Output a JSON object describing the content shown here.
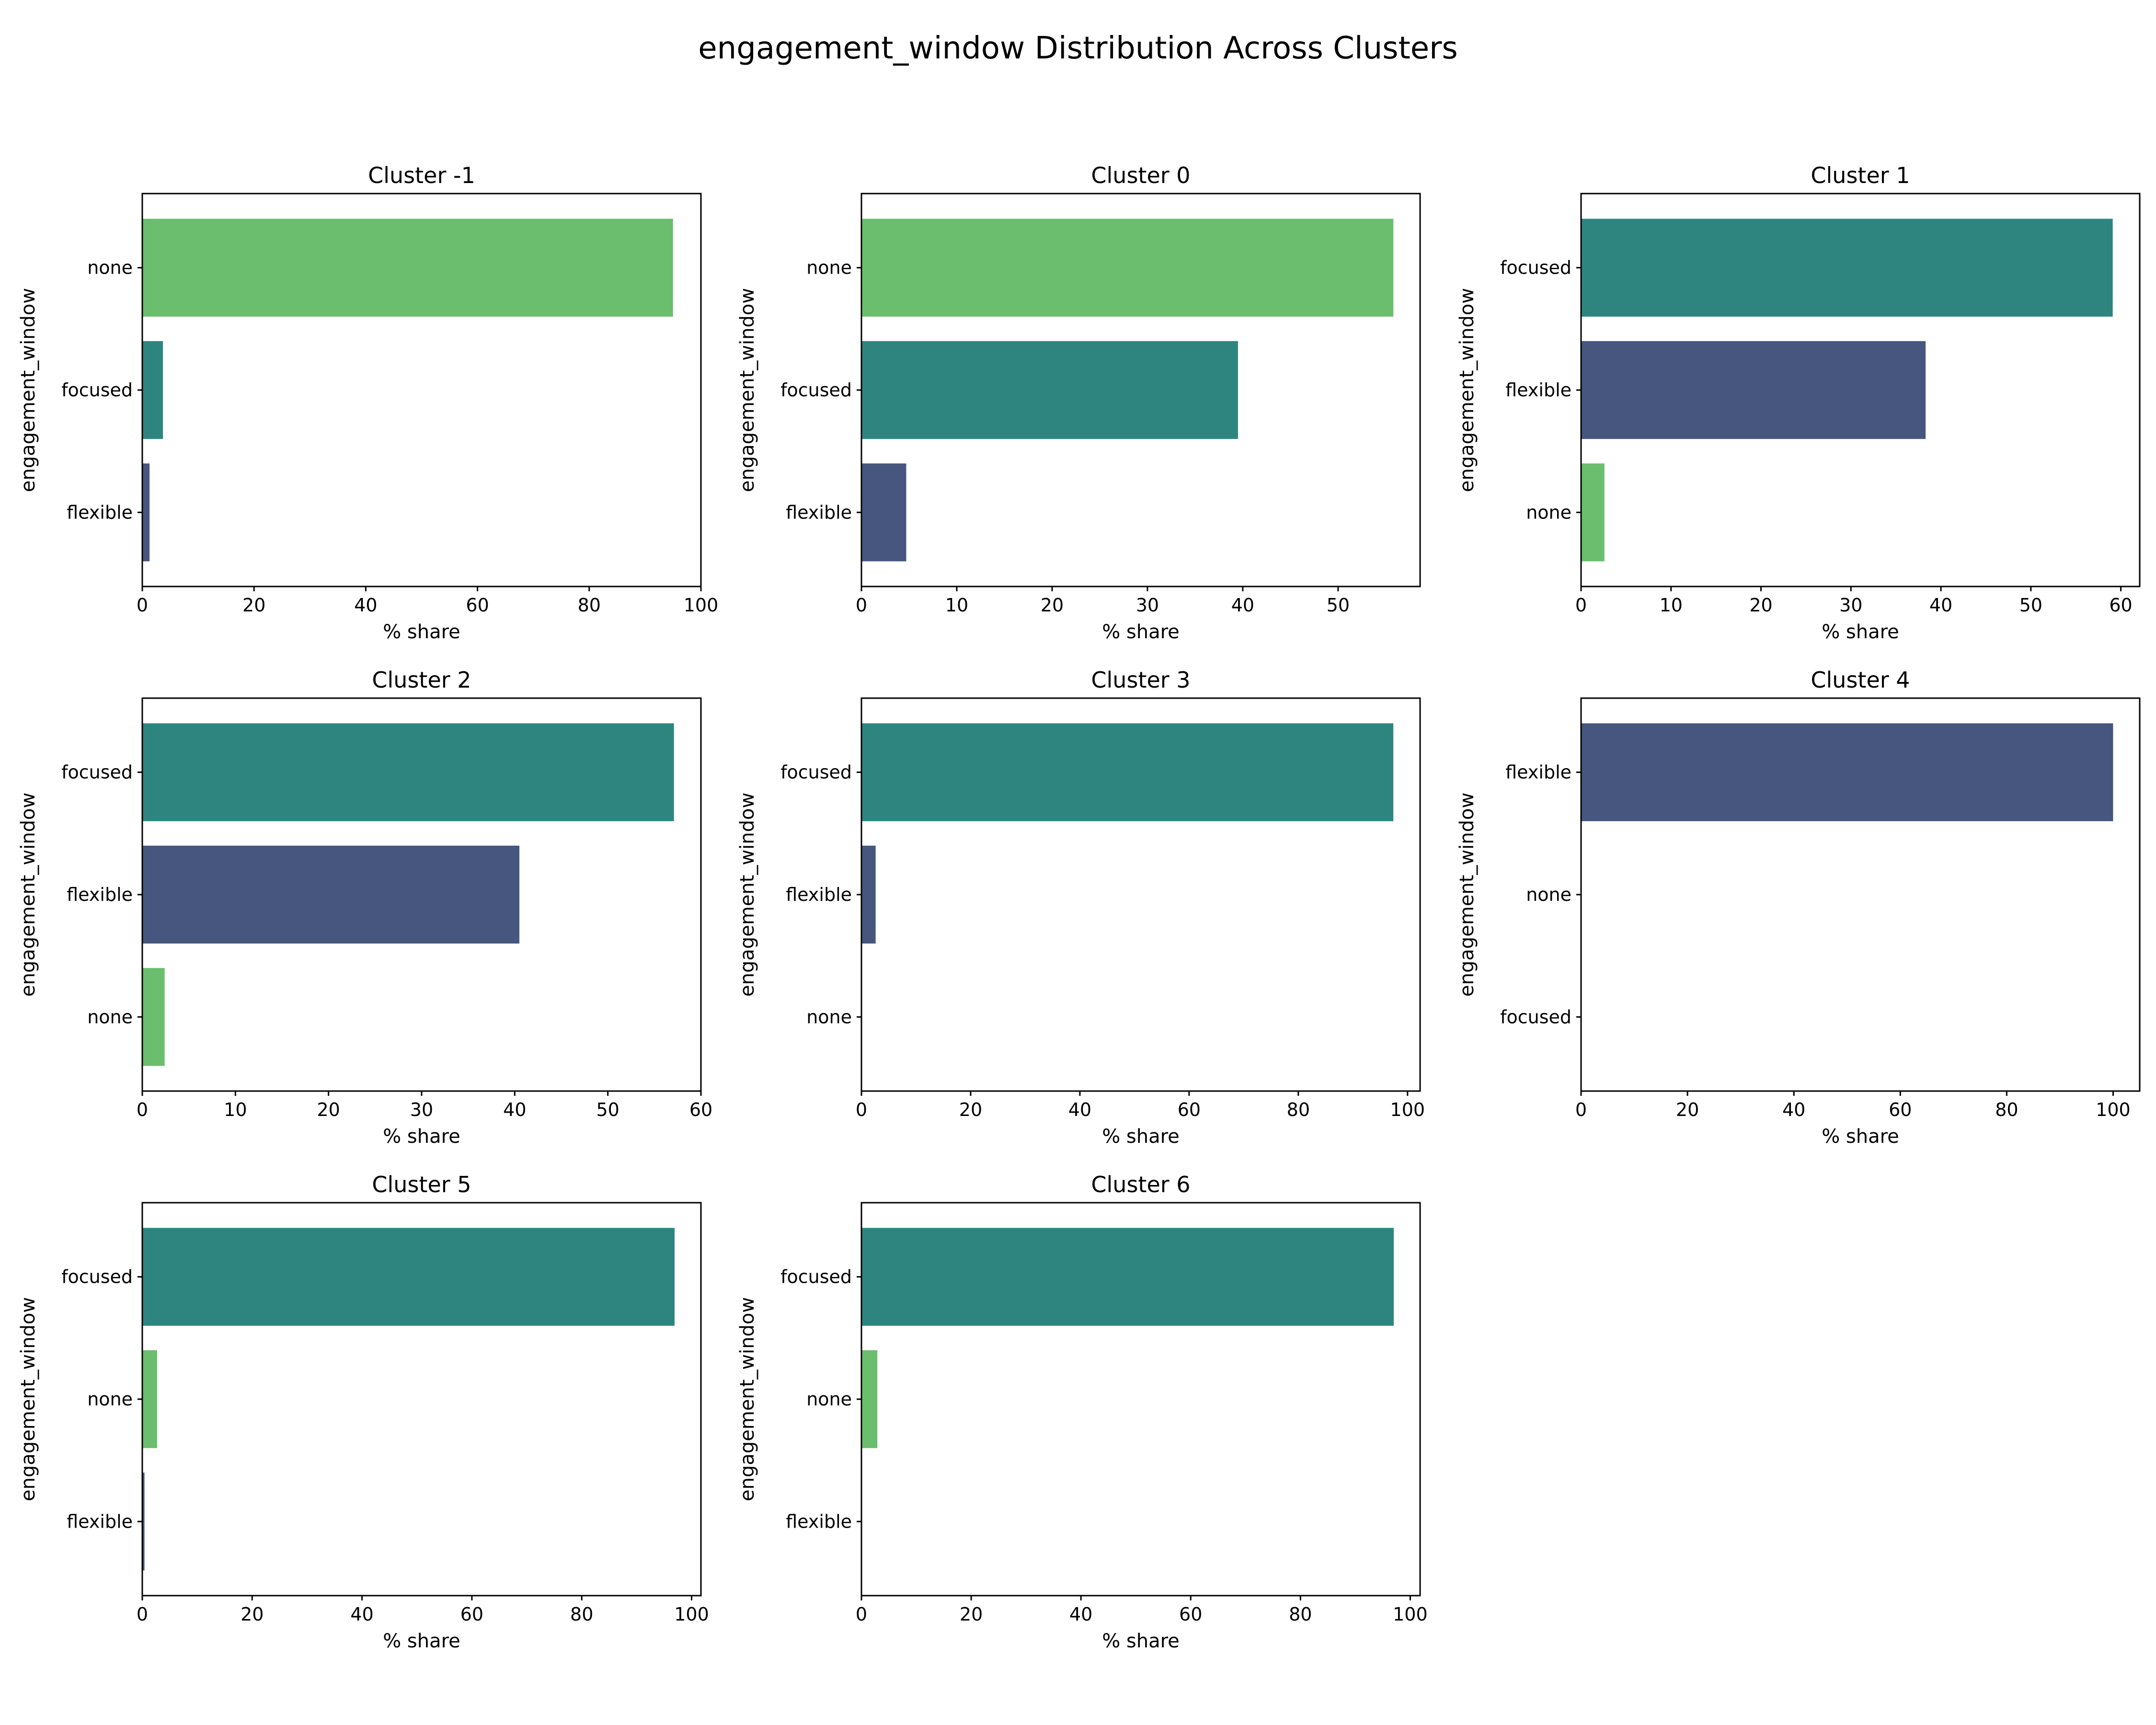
{
  "title": "engagement_window Distribution Across Clusters",
  "colors": {
    "focused": "#2e8580",
    "flexible": "#46567e",
    "none": "#6abe6e"
  },
  "chart_data": [
    {
      "type": "bar",
      "orientation": "horizontal",
      "title": "Cluster -1",
      "xlabel": "% share",
      "ylabel": "engagement_window",
      "categories": [
        "none",
        "focused",
        "flexible"
      ],
      "values": [
        95.0,
        3.7,
        1.3
      ],
      "xlim": [
        0,
        100
      ],
      "xticks": [
        0,
        20,
        40,
        60,
        80,
        100
      ]
    },
    {
      "type": "bar",
      "orientation": "horizontal",
      "title": "Cluster 0",
      "xlabel": "% share",
      "ylabel": "engagement_window",
      "categories": [
        "none",
        "focused",
        "flexible"
      ],
      "values": [
        55.8,
        39.5,
        4.7
      ],
      "xlim": [
        0,
        58.6
      ],
      "xticks": [
        0,
        10,
        20,
        30,
        40,
        50
      ]
    },
    {
      "type": "bar",
      "orientation": "horizontal",
      "title": "Cluster 1",
      "xlabel": "% share",
      "ylabel": "engagement_window",
      "categories": [
        "focused",
        "flexible",
        "none"
      ],
      "values": [
        59.1,
        38.3,
        2.6
      ],
      "xlim": [
        0,
        62.1
      ],
      "xticks": [
        0,
        10,
        20,
        30,
        40,
        50,
        60
      ]
    },
    {
      "type": "bar",
      "orientation": "horizontal",
      "title": "Cluster 2",
      "xlabel": "% share",
      "ylabel": "engagement_window",
      "categories": [
        "focused",
        "flexible",
        "none"
      ],
      "values": [
        57.1,
        40.5,
        2.4
      ],
      "xlim": [
        0,
        60
      ],
      "xticks": [
        0,
        10,
        20,
        30,
        40,
        50,
        60
      ]
    },
    {
      "type": "bar",
      "orientation": "horizontal",
      "title": "Cluster 3",
      "xlabel": "% share",
      "ylabel": "engagement_window",
      "categories": [
        "focused",
        "flexible",
        "none"
      ],
      "values": [
        97.4,
        2.6,
        0
      ],
      "xlim": [
        0,
        102.3
      ],
      "xticks": [
        0,
        20,
        40,
        60,
        80,
        100
      ]
    },
    {
      "type": "bar",
      "orientation": "horizontal",
      "title": "Cluster 4",
      "xlabel": "% share",
      "ylabel": "engagement_window",
      "categories": [
        "flexible",
        "none",
        "focused"
      ],
      "values": [
        100,
        0,
        0
      ],
      "xlim": [
        0,
        105
      ],
      "xticks": [
        0,
        20,
        40,
        60,
        80,
        100
      ]
    },
    {
      "type": "bar",
      "orientation": "horizontal",
      "title": "Cluster 5",
      "xlabel": "% share",
      "ylabel": "engagement_window",
      "categories": [
        "focused",
        "none",
        "flexible"
      ],
      "values": [
        96.9,
        2.7,
        0.4
      ],
      "xlim": [
        0,
        101.7
      ],
      "xticks": [
        0,
        20,
        40,
        60,
        80,
        100
      ]
    },
    {
      "type": "bar",
      "orientation": "horizontal",
      "title": "Cluster 6",
      "xlabel": "% share",
      "ylabel": "engagement_window",
      "categories": [
        "focused",
        "none",
        "flexible"
      ],
      "values": [
        97.0,
        2.9,
        0.1
      ],
      "xlim": [
        0,
        101.8
      ],
      "xticks": [
        0,
        20,
        40,
        60,
        80,
        100
      ]
    }
  ]
}
